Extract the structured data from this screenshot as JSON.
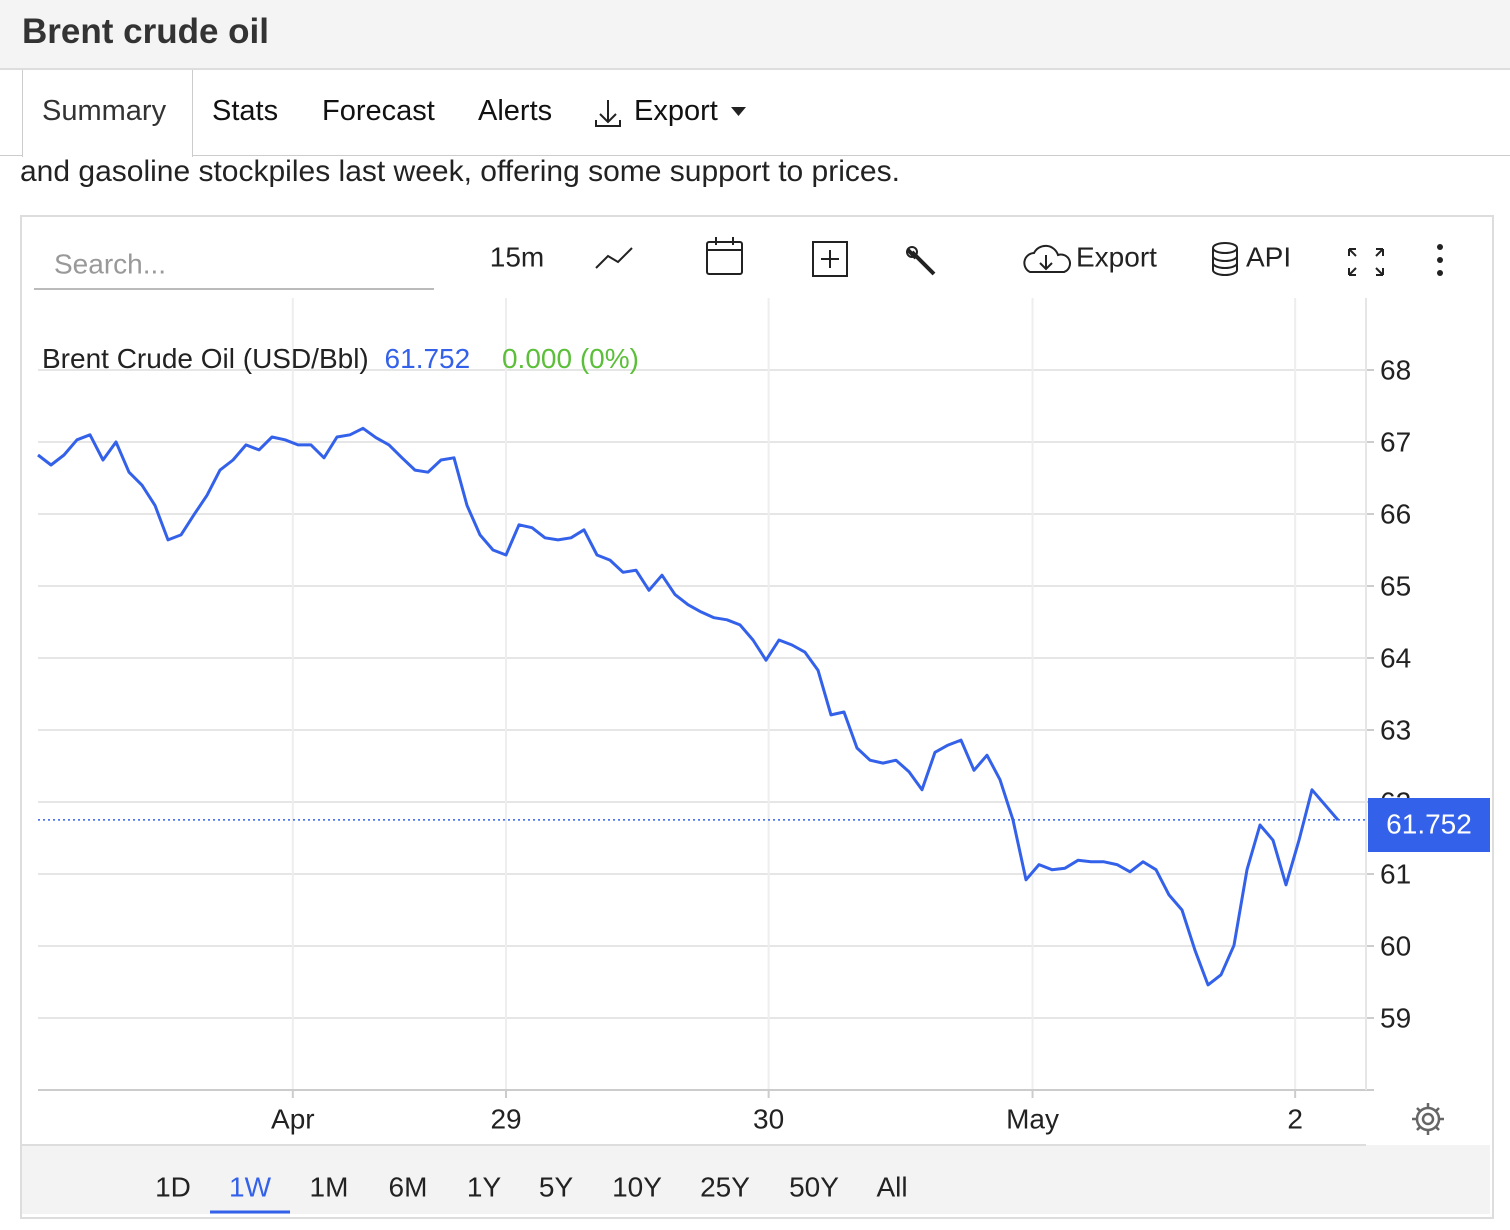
{
  "header": {
    "title": "Brent crude oil"
  },
  "tabs": [
    "Summary",
    "Stats",
    "Forecast",
    "Alerts",
    "Export"
  ],
  "news_text": "and gasoline stockpiles last week, offering some support to prices.",
  "toolbar": {
    "search_placeholder": "Search...",
    "interval": "15m",
    "export": "Export",
    "api": "API"
  },
  "chart_data": {
    "type": "line",
    "x": [
      0,
      1,
      2,
      3,
      4,
      5,
      6,
      7,
      8,
      9,
      10,
      11,
      12,
      13,
      14,
      15,
      16,
      17,
      18,
      19,
      20,
      21,
      22,
      23,
      24,
      25,
      26,
      27,
      28,
      29,
      30,
      31,
      32,
      33,
      34,
      35,
      36,
      37,
      38,
      39,
      40,
      41,
      42,
      43,
      44,
      45,
      46,
      47,
      48,
      49,
      50,
      51,
      52,
      53,
      54,
      55,
      56,
      57,
      58,
      59,
      60,
      61,
      62,
      63,
      64,
      65,
      66,
      67,
      68,
      69,
      70,
      71,
      72,
      73,
      74,
      75,
      76,
      77,
      78,
      79,
      80,
      81,
      82,
      83,
      84,
      85,
      86,
      87,
      88,
      89,
      90,
      91,
      92,
      93,
      94,
      95,
      96,
      97,
      98,
      99,
      100
    ],
    "series": [
      {
        "name": "Brent Crude Oil (USD/Bbl)",
        "color": "#3461ea",
        "values": [
          66.82,
          66.68,
          66.82,
          67.03,
          67.1,
          66.75,
          67.0,
          66.58,
          66.4,
          66.12,
          65.64,
          65.71,
          65.99,
          66.26,
          66.61,
          66.75,
          66.96,
          66.89,
          67.07,
          67.03,
          66.96,
          66.96,
          66.78,
          67.07,
          67.1,
          67.19,
          67.06,
          66.96,
          66.78,
          66.61,
          66.58,
          66.75,
          66.78,
          66.12,
          65.71,
          65.5,
          65.43,
          65.85,
          65.81,
          65.67,
          65.64,
          65.67,
          65.78,
          65.43,
          65.36,
          65.19,
          65.22,
          64.94,
          65.15,
          64.88,
          64.74,
          64.64,
          64.56,
          64.53,
          64.46,
          64.25,
          63.97,
          64.25,
          64.18,
          64.08,
          63.83,
          63.21,
          63.25,
          62.75,
          62.58,
          62.54,
          62.58,
          62.42,
          62.17,
          62.69,
          62.79,
          62.86,
          62.44,
          62.65,
          62.31,
          61.75,
          60.92,
          61.13,
          61.06,
          61.08,
          61.19,
          61.17,
          61.17,
          61.13,
          61.03,
          61.17,
          61.06,
          60.71,
          60.5,
          59.94,
          59.46,
          59.6,
          60.01,
          61.06,
          61.68,
          61.47,
          60.85,
          61.47,
          62.17,
          61.96,
          61.75
        ]
      }
    ],
    "last_value": 61.752,
    "change": "0.000 (0%)",
    "change_color": "#5cbf3a",
    "xlim": [
      0,
      102.15
    ],
    "xticks": [
      {
        "value": 19.6,
        "label": "Apr"
      },
      {
        "value": 36.0,
        "label": "29"
      },
      {
        "value": 56.2,
        "label": "30"
      },
      {
        "value": 76.5,
        "label": "May"
      },
      {
        "value": 96.7,
        "label": "2"
      }
    ],
    "ylim": [
      58,
      69
    ],
    "yticks": [
      59,
      60,
      61,
      62,
      63,
      64,
      65,
      66,
      67,
      68
    ],
    "grid": true,
    "ranges": [
      "1D",
      "1W",
      "1M",
      "6M",
      "1Y",
      "5Y",
      "10Y",
      "25Y",
      "50Y",
      "All"
    ],
    "active_range": "1W"
  }
}
